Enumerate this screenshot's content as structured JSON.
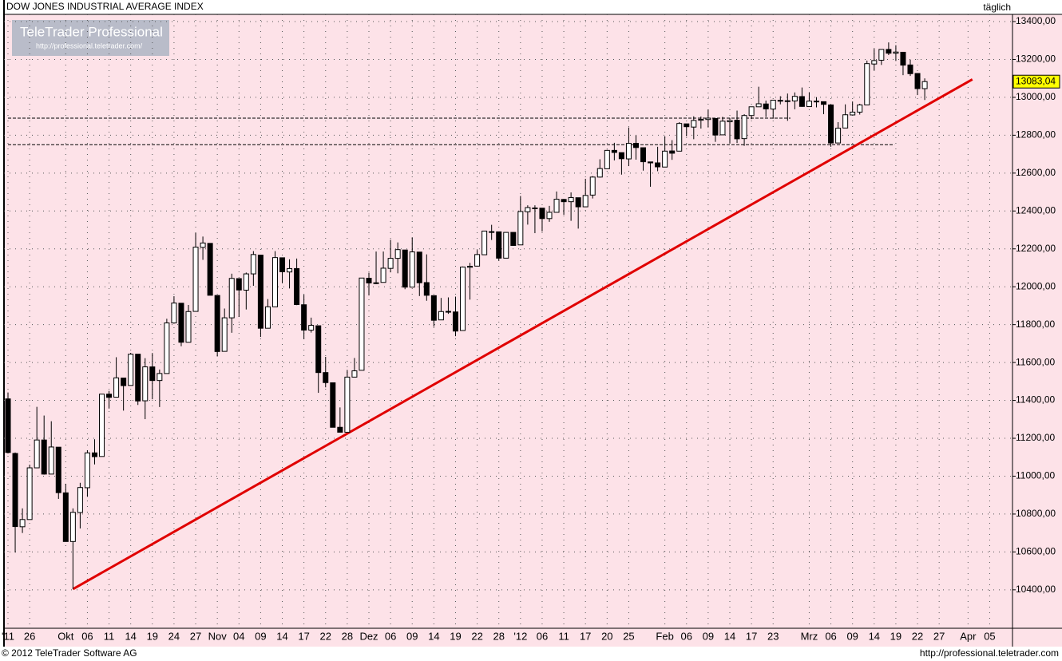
{
  "chart_data": {
    "type": "candlestick",
    "title": "DOW JONES INDUSTRIAL AVERAGE INDEX",
    "period": "täglich",
    "watermark": "TeleTrader Professional",
    "watermark_url": "http://professional.teletrader.com/",
    "footer_left": "© 2012 TeleTrader Software AG",
    "footer_right": "http://professional.teletrader.com",
    "categories": [
      "'11",
      null,
      null,
      "26",
      null,
      null,
      null,
      null,
      "Okt",
      null,
      null,
      "06",
      null,
      null,
      "11",
      null,
      null,
      "14",
      null,
      null,
      "19",
      null,
      null,
      "24",
      null,
      null,
      "27",
      null,
      null,
      "Nov",
      null,
      null,
      "04",
      null,
      null,
      "09",
      null,
      null,
      "14",
      null,
      null,
      "17",
      null,
      null,
      "22",
      null,
      null,
      "28",
      null,
      null,
      "Dez",
      null,
      null,
      "06",
      null,
      null,
      "09",
      null,
      null,
      "14",
      null,
      null,
      "19",
      null,
      null,
      "22",
      null,
      null,
      "28",
      null,
      null,
      "'12",
      null,
      null,
      "06",
      null,
      null,
      "11",
      null,
      null,
      "17",
      null,
      null,
      "20",
      null,
      null,
      "25",
      null,
      null,
      null,
      null,
      "Feb",
      null,
      null,
      "06",
      null,
      null,
      "09",
      null,
      null,
      "14",
      null,
      null,
      "17",
      null,
      null,
      "23",
      null,
      null,
      null,
      null,
      "Mrz",
      null,
      null,
      "06",
      null,
      null,
      "09",
      null,
      null,
      "14",
      null,
      null,
      "19",
      null,
      null,
      "22",
      null,
      null,
      "27",
      null,
      null,
      null,
      "Apr",
      null,
      null,
      "05",
      null,
      null,
      null
    ],
    "candles": [
      [
        11408,
        11442,
        11120,
        11125
      ],
      [
        11120,
        11125,
        10597,
        10734
      ],
      [
        10733,
        10830,
        10700,
        10771
      ],
      [
        10771,
        11061,
        10771,
        11044
      ],
      [
        11044,
        11366,
        11044,
        11191
      ],
      [
        11191,
        11320,
        11008,
        11011
      ],
      [
        11011,
        11290,
        11011,
        11154
      ],
      [
        11153,
        11153,
        10880,
        10913
      ],
      [
        10912,
        10960,
        10655,
        10655
      ],
      [
        10655,
        10830,
        10404,
        10809
      ],
      [
        10808,
        10965,
        10724,
        10940
      ],
      [
        10939,
        11137,
        10891,
        11123
      ],
      [
        11123,
        11195,
        11062,
        11103
      ],
      [
        11104,
        11434,
        11104,
        11433
      ],
      [
        11433,
        11450,
        11357,
        11416
      ],
      [
        11417,
        11628,
        11417,
        11519
      ],
      [
        11518,
        11518,
        11346,
        11478
      ],
      [
        11479,
        11651,
        11479,
        11644
      ],
      [
        11644,
        11644,
        11376,
        11397
      ],
      [
        11398,
        11623,
        11301,
        11577
      ],
      [
        11577,
        11650,
        11406,
        11505
      ],
      [
        11505,
        11563,
        11365,
        11542
      ],
      [
        11542,
        11831,
        11542,
        11809
      ],
      [
        11809,
        11950,
        11805,
        11914
      ],
      [
        11913,
        11913,
        11686,
        11707
      ],
      [
        11707,
        11904,
        11707,
        11869
      ],
      [
        11870,
        12284,
        11870,
        12209
      ],
      [
        12208,
        12265,
        12142,
        12231
      ],
      [
        12229,
        12229,
        11955,
        11955
      ],
      [
        11954,
        11954,
        11632,
        11658
      ],
      [
        11659,
        11885,
        11659,
        11836
      ],
      [
        11836,
        12069,
        11757,
        12044
      ],
      [
        12043,
        12043,
        11841,
        11983
      ],
      [
        11982,
        12075,
        11880,
        12068
      ],
      [
        12068,
        12188,
        12005,
        12170
      ],
      [
        12167,
        12167,
        11735,
        11781
      ],
      [
        11781,
        11935,
        11781,
        11894
      ],
      [
        11894,
        12188,
        11894,
        12154
      ],
      [
        12153,
        12153,
        12020,
        12079
      ],
      [
        12078,
        12145,
        11991,
        12096
      ],
      [
        12096,
        12149,
        11903,
        11906
      ],
      [
        11905,
        11958,
        11724,
        11771
      ],
      [
        11771,
        11837,
        11758,
        11796
      ],
      [
        11794,
        11794,
        11440,
        11547
      ],
      [
        11547,
        11630,
        11469,
        11494
      ],
      [
        11493,
        11493,
        11257,
        11258
      ],
      [
        11258,
        11363,
        11231,
        11232
      ],
      [
        11232,
        11561,
        11232,
        11523
      ],
      [
        11523,
        11624,
        11523,
        11556
      ],
      [
        11559,
        12046,
        11559,
        12046
      ],
      [
        12045,
        12074,
        11954,
        12020
      ],
      [
        12021,
        12186,
        12014,
        12019
      ],
      [
        12023,
        12186,
        12023,
        12098
      ],
      [
        12097,
        12248,
        12076,
        12150
      ],
      [
        12150,
        12234,
        12071,
        12196
      ],
      [
        12194,
        12194,
        11987,
        11998
      ],
      [
        11998,
        12261,
        11998,
        12184
      ],
      [
        12183,
        12183,
        11951,
        12021
      ],
      [
        12022,
        12171,
        11926,
        11955
      ],
      [
        11953,
        11953,
        11789,
        11823
      ],
      [
        11825,
        11941,
        11825,
        11869
      ],
      [
        11870,
        11944,
        11857,
        11866
      ],
      [
        11867,
        11948,
        11739,
        11766
      ],
      [
        11769,
        12107,
        11769,
        12104
      ],
      [
        12103,
        12126,
        11932,
        12108
      ],
      [
        12109,
        12194,
        12109,
        12170
      ],
      [
        12169,
        12294,
        12169,
        12294
      ],
      [
        12291,
        12327,
        12247,
        12291
      ],
      [
        12290,
        12291,
        12138,
        12151
      ],
      [
        12151,
        12287,
        12151,
        12287
      ],
      [
        12287,
        12287,
        12217,
        12218
      ],
      [
        12221,
        12479,
        12221,
        12397
      ],
      [
        12396,
        12430,
        12328,
        12418
      ],
      [
        12414,
        12430,
        12283,
        12416
      ],
      [
        12415,
        12416,
        12292,
        12360
      ],
      [
        12360,
        12427,
        12343,
        12393
      ],
      [
        12393,
        12503,
        12393,
        12462
      ],
      [
        12461,
        12463,
        12380,
        12449
      ],
      [
        12449,
        12498,
        12348,
        12471
      ],
      [
        12470,
        12470,
        12307,
        12422
      ],
      [
        12422,
        12570,
        12422,
        12482
      ],
      [
        12484,
        12584,
        12466,
        12579
      ],
      [
        12579,
        12673,
        12576,
        12624
      ],
      [
        12623,
        12723,
        12623,
        12720
      ],
      [
        12720,
        12760,
        12667,
        12709
      ],
      [
        12708,
        12708,
        12592,
        12676
      ],
      [
        12675,
        12841,
        12637,
        12757
      ],
      [
        12757,
        12799,
        12671,
        12735
      ],
      [
        12734,
        12734,
        12613,
        12660
      ],
      [
        12659,
        12659,
        12528,
        12654
      ],
      [
        12654,
        12739,
        12610,
        12633
      ],
      [
        12632,
        12795,
        12632,
        12716
      ],
      [
        12717,
        12774,
        12670,
        12705
      ],
      [
        12716,
        12869,
        12716,
        12862
      ],
      [
        12860,
        12860,
        12795,
        12845
      ],
      [
        12843,
        12900,
        12779,
        12878
      ],
      [
        12879,
        12899,
        12835,
        12884
      ],
      [
        12883,
        12935,
        12841,
        12890
      ],
      [
        12888,
        12888,
        12765,
        12801
      ],
      [
        12802,
        12897,
        12802,
        12874
      ],
      [
        12871,
        12891,
        12757,
        12878
      ],
      [
        12879,
        12930,
        12759,
        12781
      ],
      [
        12782,
        12911,
        12744,
        12904
      ],
      [
        12904,
        12950,
        12885,
        12950
      ],
      [
        12950,
        13056,
        12950,
        12966
      ],
      [
        12965,
        12983,
        12896,
        12939
      ],
      [
        12938,
        12985,
        12887,
        12985
      ],
      [
        12984,
        13006,
        12963,
        12983
      ],
      [
        12981,
        13020,
        12876,
        12982
      ],
      [
        12981,
        13026,
        12937,
        13005
      ],
      [
        13004,
        13052,
        12950,
        12952
      ],
      [
        12951,
        13027,
        12951,
        12980
      ],
      [
        12980,
        13001,
        12947,
        12978
      ],
      [
        12977,
        12977,
        12911,
        12963
      ],
      [
        12960,
        12960,
        12739,
        12759
      ],
      [
        12759,
        12869,
        12759,
        12837
      ],
      [
        12838,
        12963,
        12838,
        12908
      ],
      [
        12907,
        12978,
        12907,
        12922
      ],
      [
        12922,
        12966,
        12909,
        12960
      ],
      [
        12960,
        13194,
        12960,
        13178
      ],
      [
        13176,
        13256,
        13143,
        13194
      ],
      [
        13196,
        13254,
        13171,
        13253
      ],
      [
        13253,
        13290,
        13223,
        13233
      ],
      [
        13233,
        13275,
        13192,
        13239
      ],
      [
        13238,
        13239,
        13117,
        13170
      ],
      [
        13171,
        13199,
        13113,
        13125
      ],
      [
        13126,
        13126,
        13012,
        13046
      ],
      [
        13046,
        13100,
        12986,
        13083.04
      ],
      null,
      null,
      null,
      null,
      null,
      null,
      null,
      null,
      null,
      null,
      null,
      null
    ],
    "last_label": "13083,04",
    "up_color": "#ffffff",
    "down_color": "#000000",
    "trendline": {
      "x": [
        9,
        133.6
      ],
      "y": [
        10404,
        13095
      ],
      "color": "#e00000"
    },
    "hlines": [
      {
        "y": 12890,
        "x": [
          0,
          108.4
        ]
      },
      {
        "y": 12750,
        "x": [
          0,
          122.8
        ]
      }
    ],
    "ylim": [
      10197,
      13438
    ],
    "yticks": [
      {
        "value": 10400,
        "label": "10400,00"
      },
      {
        "value": 10600,
        "label": "10600,00"
      },
      {
        "value": 10800,
        "label": "10800,00"
      },
      {
        "value": 11000,
        "label": "11000,00"
      },
      {
        "value": 11200,
        "label": "11200,00"
      },
      {
        "value": 11400,
        "label": "11400,00"
      },
      {
        "value": 11600,
        "label": "11600,00"
      },
      {
        "value": 11800,
        "label": "11800,00"
      },
      {
        "value": 12000,
        "label": "12000,00"
      },
      {
        "value": 12200,
        "label": "12200,00"
      },
      {
        "value": 12400,
        "label": "12400,00"
      },
      {
        "value": 12600,
        "label": "12600,00"
      },
      {
        "value": 12800,
        "label": "12800,00"
      },
      {
        "value": 13000,
        "label": "13000,00"
      },
      {
        "value": 13200,
        "label": "13200,00"
      },
      {
        "value": 13400,
        "label": "13400,00"
      }
    ],
    "grid": true
  }
}
